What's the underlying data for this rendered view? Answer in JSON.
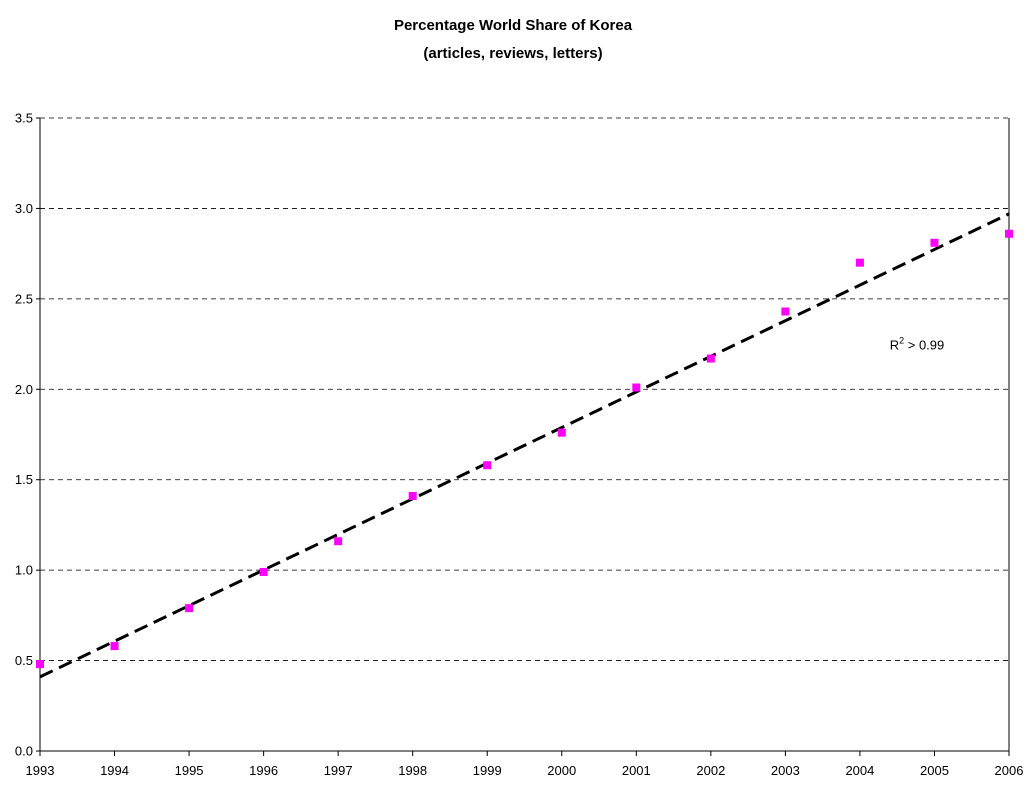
{
  "chart_data": {
    "type": "scatter",
    "title": "Percentage World Share of Korea",
    "subtitle": "(articles, reviews, letters)",
    "xlabel": "",
    "ylabel": "",
    "x": [
      1993,
      1994,
      1995,
      1996,
      1997,
      1998,
      1999,
      2000,
      2001,
      2002,
      2003,
      2004,
      2005,
      2006
    ],
    "series": [
      {
        "name": "",
        "values": [
          0.48,
          0.58,
          0.79,
          0.99,
          1.16,
          1.41,
          1.58,
          1.76,
          2.01,
          2.17,
          2.43,
          2.7,
          2.81,
          2.86
        ],
        "color": "#FF00FF",
        "marker": "square"
      }
    ],
    "trendline": {
      "type": "linear",
      "start": [
        1993,
        0.41
      ],
      "end": [
        2006,
        2.97
      ],
      "color": "#000000",
      "style": "dashed"
    },
    "annotation": {
      "base": "R",
      "superscript": "2",
      "rest": " > 0.99",
      "x": 2004.4,
      "y": 2.22
    },
    "xlim": [
      1993,
      2006
    ],
    "ylim": [
      0.0,
      3.5
    ],
    "xticks": [
      "1993",
      "1994",
      "1995",
      "1996",
      "1997",
      "1998",
      "1999",
      "2000",
      "2001",
      "2002",
      "2003",
      "2004",
      "2005",
      "2006"
    ],
    "yticks": [
      "0.0",
      "0.5",
      "1.0",
      "1.5",
      "2.0",
      "2.5",
      "3.0",
      "3.5"
    ],
    "ytick_values": [
      0.0,
      0.5,
      1.0,
      1.5,
      2.0,
      2.5,
      3.0,
      3.5
    ],
    "grid": "horizontal-dashed",
    "legend": "none"
  }
}
